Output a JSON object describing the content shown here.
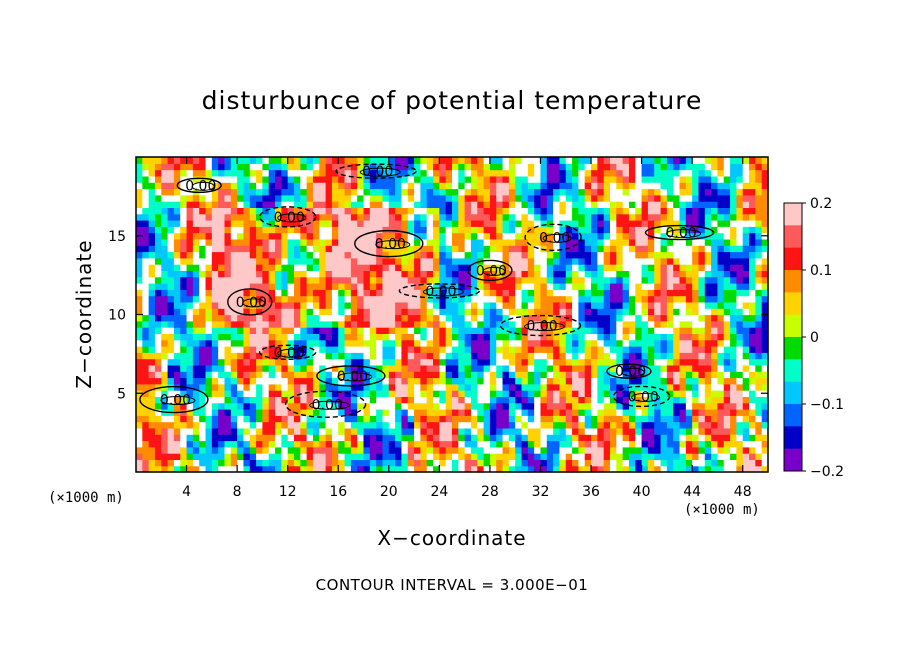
{
  "chart_data": {
    "type": "heatmap",
    "title": "disturbunce of potential temperature",
    "xlabel": "X−coordinate",
    "ylabel": "Z−coordinate",
    "x_unit_label_left": "(×1000 m)",
    "x_unit_label_right": "(×1000 m)",
    "xlim": [
      0,
      50
    ],
    "ylim": [
      0,
      20
    ],
    "x_ticks": [
      4,
      8,
      12,
      16,
      20,
      24,
      28,
      32,
      36,
      40,
      44,
      48
    ],
    "y_ticks": [
      5,
      10,
      15
    ],
    "colorbar": {
      "range": [
        -0.2,
        0.2
      ],
      "ticks": [
        0.2,
        0.1,
        0,
        -0.1,
        -0.2
      ],
      "tick_labels": [
        "0.2",
        "0.1",
        "0",
        "−0.1",
        "−0.2"
      ],
      "colors": [
        "#ffc8c8",
        "#ff5a5a",
        "#ff1414",
        "#ff8c00",
        "#ffd200",
        "#c8ff00",
        "#00dc00",
        "#00ffc8",
        "#00c8ff",
        "#0064ff",
        "#0000c8",
        "#7800c8"
      ]
    },
    "contour_label": "0.00",
    "features": [
      {
        "x": 5,
        "z": 18.2
      },
      {
        "x": 12,
        "z": 16.2
      },
      {
        "x": 20,
        "z": 14.5
      },
      {
        "x": 24,
        "z": 11.5
      },
      {
        "x": 28,
        "z": 12.8
      },
      {
        "x": 33,
        "z": 14.9
      },
      {
        "x": 43,
        "z": 15.2
      },
      {
        "x": 32,
        "z": 9.3
      },
      {
        "x": 9,
        "z": 10.8
      },
      {
        "x": 12,
        "z": 7.6
      },
      {
        "x": 17,
        "z": 6.1
      },
      {
        "x": 15,
        "z": 4.3
      },
      {
        "x": 39,
        "z": 6.4
      },
      {
        "x": 40,
        "z": 4.8
      },
      {
        "x": 3,
        "z": 4.6
      },
      {
        "x": 19,
        "z": 19.1
      }
    ],
    "contour_interval_text": "CONTOUR INTERVAL = 3.000E−01"
  }
}
